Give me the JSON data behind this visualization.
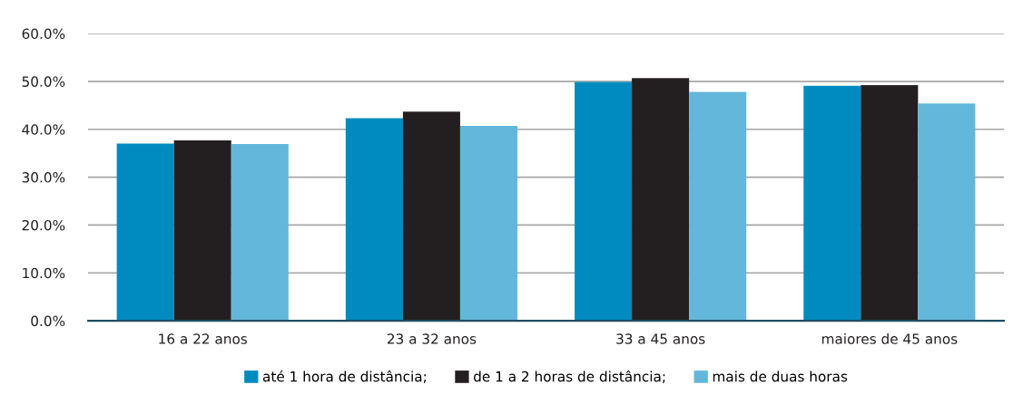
{
  "chart_data": {
    "type": "bar",
    "categories": [
      "16 a 22 anos",
      "23 a 32 anos",
      "33 a 45 anos",
      "maiores de 45 anos"
    ],
    "series": [
      {
        "name": "até 1 hora de distância;",
        "color": "#008bc0",
        "values": [
          37.0,
          42.3,
          49.9,
          49.1
        ]
      },
      {
        "name": "de 1 a 2 horas de distância;",
        "color": "#231f20",
        "values": [
          37.7,
          43.7,
          50.7,
          49.2
        ]
      },
      {
        "name": "mais de duas horas",
        "color": "#63b7db",
        "values": [
          36.9,
          40.7,
          47.8,
          45.4
        ]
      }
    ],
    "ylim": [
      0,
      60
    ],
    "yticks": [
      {
        "value": 0,
        "label": "0.0%"
      },
      {
        "value": 10,
        "label": "10.0%"
      },
      {
        "value": 20,
        "label": "20.0%"
      },
      {
        "value": 30,
        "label": "30.0%"
      },
      {
        "value": 40,
        "label": "40.0%"
      },
      {
        "value": 50,
        "label": "50.0%"
      },
      {
        "value": 60,
        "label": "60.0%"
      }
    ],
    "grid": "y",
    "legend": "bottom"
  }
}
